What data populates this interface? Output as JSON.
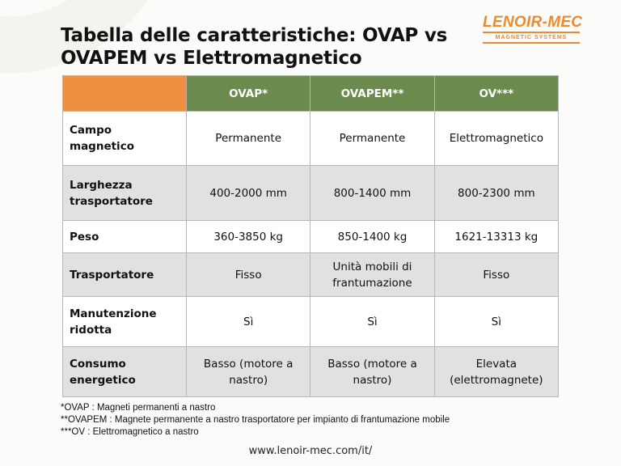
{
  "title": "Tabella delle caratteristiche: OVAP vs OVAPEM vs Elettromagnetico",
  "logo": {
    "name": "LENOIR-MEC",
    "tagline": "MAGNETIC SYSTEMS"
  },
  "table": {
    "headers": [
      "",
      "OVAP*",
      "OVAPEM**",
      "OV***"
    ],
    "rows": [
      {
        "label": "Campo magnetico",
        "values": [
          "Permanente",
          "Permanente",
          "Elettromagnetico"
        ]
      },
      {
        "label": "Larghezza trasportatore",
        "values": [
          "400-2000 mm",
          "800-1400 mm",
          "800-2300 mm"
        ]
      },
      {
        "label": "Peso",
        "values": [
          "360-3850 kg",
          "850-1400 kg",
          "1621-13313 kg"
        ]
      },
      {
        "label": "Trasportatore",
        "values": [
          "Fisso",
          "Unità mobili di frantumazione",
          "Fisso"
        ]
      },
      {
        "label": "Manutenzione ridotta",
        "values": [
          "Sì",
          "Sì",
          "Sì"
        ]
      },
      {
        "label": "Consumo energetico",
        "values": [
          "Basso (motore a nastro)",
          "Basso (motore a nastro)",
          "Elevata (elettromagnete)"
        ]
      }
    ]
  },
  "notes": [
    "*OVAP : Magneti permanenti a nastro",
    "**OVAPEM : Magnete permanente a nastro trasportatore per impianto di frantumazione mobile",
    "***OV : Elettromagnetico a nastro"
  ],
  "url": "www.lenoir-mec.com/it/",
  "colors": {
    "orange": "#ee903f",
    "green": "#6b8a4e",
    "row_alt": "#e1e1e1"
  }
}
